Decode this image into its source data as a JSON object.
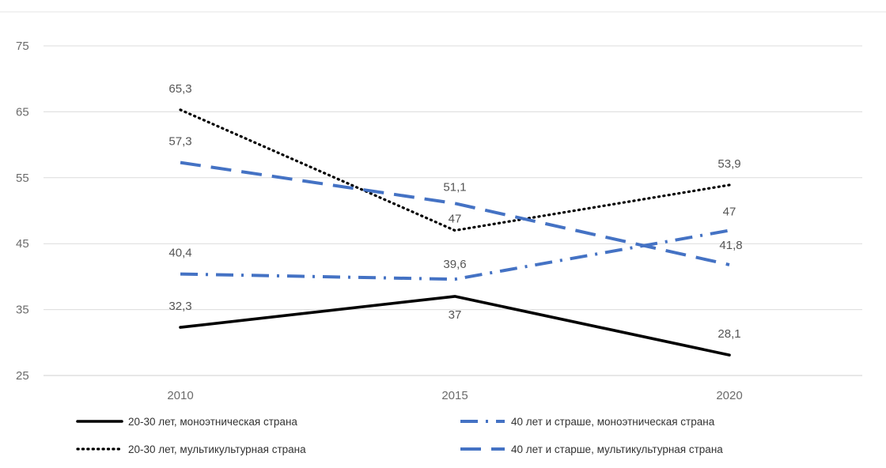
{
  "chart_data": {
    "type": "line",
    "title": "",
    "xlabel": "",
    "ylabel": "",
    "categories": [
      "2010",
      "2015",
      "2020"
    ],
    "ylim": [
      25,
      75
    ],
    "yticks": [
      25,
      35,
      45,
      55,
      65,
      75
    ],
    "grid": true,
    "legend_position": "bottom",
    "series": [
      {
        "name": "20-30 лет, моноэтническая страна",
        "values": [
          32.3,
          37,
          28.1
        ],
        "labels": [
          "32,3",
          "37",
          "28,1"
        ],
        "color": "#000000",
        "dash": "solid"
      },
      {
        "name": "20-30 лет, мультикультурная страна",
        "values": [
          65.3,
          47,
          53.9
        ],
        "labels": [
          "65,3",
          "47",
          "53,9"
        ],
        "color": "#000000",
        "dash": "dotted"
      },
      {
        "name": "40 лет и страше, моноэтническая страна",
        "values": [
          40.4,
          39.6,
          47
        ],
        "labels": [
          "40,4",
          "39,6",
          "47"
        ],
        "color": "#4472c4",
        "dash": "dashdot"
      },
      {
        "name": "40 лет и старше, мультикультурная страна",
        "values": [
          57.3,
          51.1,
          41.8
        ],
        "labels": [
          "57,3",
          "51,1",
          "41,8"
        ],
        "color": "#4472c4",
        "dash": "dashed"
      }
    ]
  }
}
